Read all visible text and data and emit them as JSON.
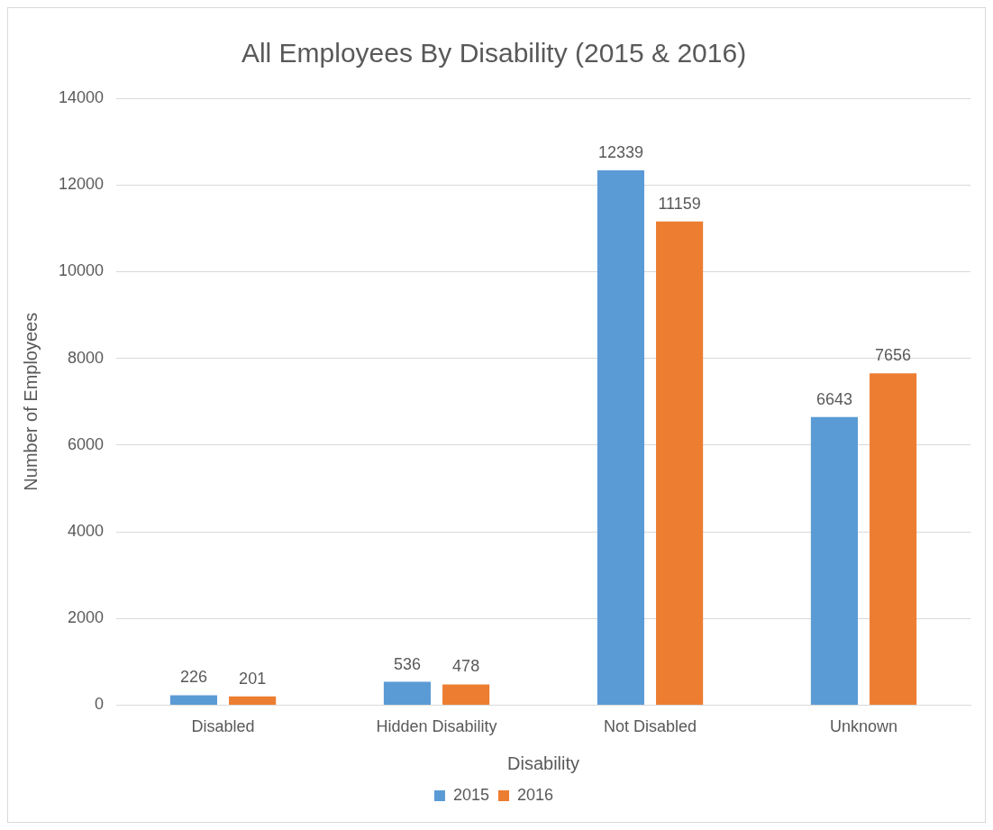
{
  "chart_data": {
    "type": "bar",
    "title": "All Employees By Disability (2015 & 2016)",
    "xlabel": "Disability",
    "ylabel": "Number of Employees",
    "categories": [
      "Disabled",
      "Hidden Disability",
      "Not Disabled",
      "Unknown"
    ],
    "series": [
      {
        "name": "2015",
        "color": "#5b9bd5",
        "values": [
          226,
          536,
          12339,
          6643
        ]
      },
      {
        "name": "2016",
        "color": "#ed7d31",
        "values": [
          201,
          478,
          11159,
          7656
        ]
      }
    ],
    "ylim": [
      0,
      14000
    ],
    "yticks": [
      0,
      2000,
      4000,
      6000,
      8000,
      10000,
      12000,
      14000
    ],
    "grid": "y",
    "legend": "bottom",
    "data_labels": true
  }
}
